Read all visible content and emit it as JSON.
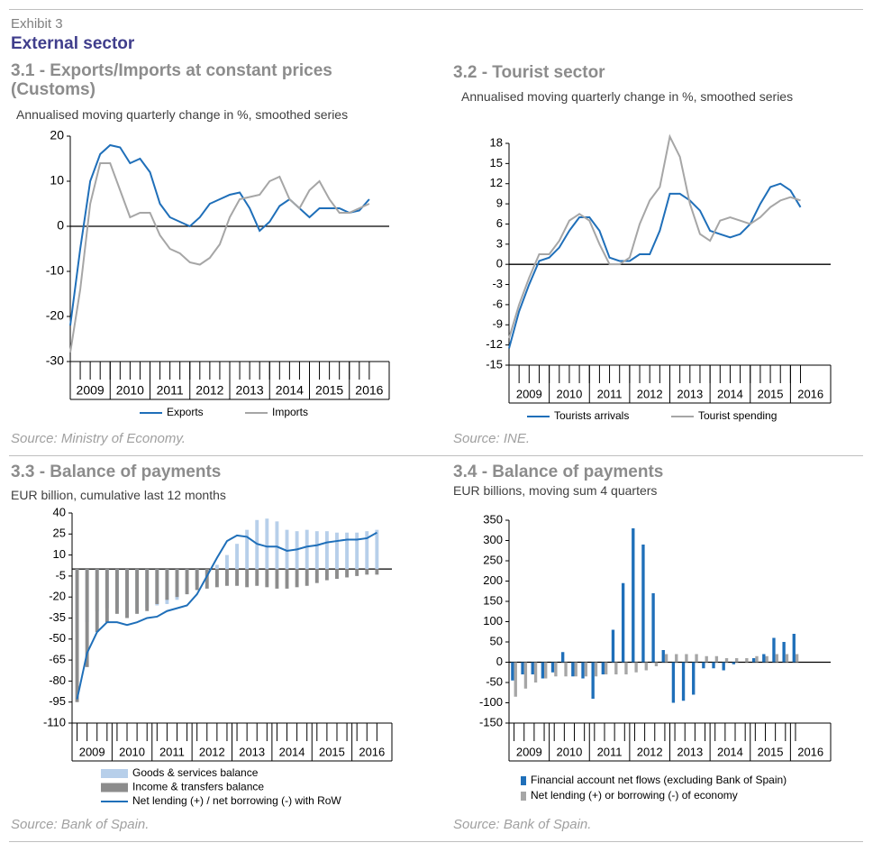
{
  "header": {
    "exhibit": "Exhibit 3",
    "title": "External sector"
  },
  "chart_data": [
    {
      "type": "line",
      "title": "3.1 - Exports/Imports at constant prices (Customs)",
      "subtitle": "Annualised moving quarterly change in %, smoothed series",
      "source": "Source: Ministry of Economy.",
      "x": [
        2009,
        2009.25,
        2009.5,
        2009.75,
        2010,
        2010.25,
        2010.5,
        2010.75,
        2011,
        2011.25,
        2011.5,
        2011.75,
        2012,
        2012.25,
        2012.5,
        2012.75,
        2013,
        2013.25,
        2013.5,
        2013.75,
        2014,
        2014.25,
        2014.5,
        2014.75,
        2015,
        2015.25,
        2015.5,
        2015.75,
        2016,
        2016.25,
        2016.5
      ],
      "xlim": [
        2009,
        2017
      ],
      "xticks": [
        {
          "value": 2009.5,
          "label": "2009"
        },
        {
          "value": 2010.5,
          "label": "2010"
        },
        {
          "value": 2011.5,
          "label": "2011"
        },
        {
          "value": 2012.5,
          "label": "2012"
        },
        {
          "value": 2013.5,
          "label": "2013"
        },
        {
          "value": 2014.5,
          "label": "2014"
        },
        {
          "value": 2015.5,
          "label": "2015"
        },
        {
          "value": 2016.5,
          "label": "2016"
        }
      ],
      "ylim": [
        -30,
        20
      ],
      "yticks": [
        -30,
        -20,
        -10,
        0,
        10,
        20
      ],
      "series": [
        {
          "name": "Exports",
          "type": "line",
          "color": "#1f6fb9",
          "values": [
            -22,
            -5,
            10,
            16,
            18,
            17.5,
            14,
            15,
            12,
            5,
            2,
            1,
            0,
            2,
            5,
            6,
            7,
            7.5,
            4,
            -1,
            1,
            4.5,
            6,
            4,
            2,
            4,
            4,
            4,
            3,
            3.5,
            6
          ]
        },
        {
          "name": "Imports",
          "type": "line",
          "color": "#a6a6a6",
          "values": [
            -28,
            -14,
            5,
            14,
            14,
            8,
            2,
            3,
            3,
            -2,
            -5,
            -6,
            -8,
            -8.5,
            -7,
            -4,
            2,
            6,
            6.5,
            7,
            10,
            11,
            6,
            4,
            8,
            10,
            6,
            3,
            3,
            4,
            5
          ]
        }
      ]
    },
    {
      "type": "line",
      "title": "3.2 - Tourist sector",
      "subtitle": "Annualised moving quarterly change in %, smoothed series",
      "source": "Source: INE.",
      "x": [
        2009,
        2009.25,
        2009.5,
        2009.75,
        2010,
        2010.25,
        2010.5,
        2010.75,
        2011,
        2011.25,
        2011.5,
        2011.75,
        2012,
        2012.25,
        2012.5,
        2012.75,
        2013,
        2013.25,
        2013.5,
        2013.75,
        2014,
        2014.25,
        2014.5,
        2014.75,
        2015,
        2015.25,
        2015.5,
        2015.75,
        2016,
        2016.25
      ],
      "xlim": [
        2009,
        2017
      ],
      "xticks": [
        {
          "value": 2009.5,
          "label": "2009"
        },
        {
          "value": 2010.5,
          "label": "2010"
        },
        {
          "value": 2011.5,
          "label": "2011"
        },
        {
          "value": 2012.5,
          "label": "2012"
        },
        {
          "value": 2013.5,
          "label": "2013"
        },
        {
          "value": 2014.5,
          "label": "2014"
        },
        {
          "value": 2015.5,
          "label": "2015"
        },
        {
          "value": 2016.5,
          "label": "2016"
        }
      ],
      "ylim": [
        -15,
        18
      ],
      "yticks": [
        -15,
        -12,
        -9,
        -6,
        -3,
        0,
        3,
        6,
        9,
        12,
        15,
        18
      ],
      "series": [
        {
          "name": "Tourists arrivals",
          "type": "line",
          "color": "#1f6fb9",
          "values": [
            -12.5,
            -7,
            -3,
            0.5,
            1,
            2.5,
            5,
            7,
            7,
            5,
            1,
            0.5,
            0.5,
            1.5,
            1.5,
            5,
            10.5,
            10.5,
            9.5,
            8,
            5,
            4.5,
            4,
            4.5,
            6,
            9,
            11.5,
            12,
            11,
            8.5
          ]
        },
        {
          "name": "Tourist  spending",
          "type": "line",
          "color": "#a6a6a6",
          "values": [
            -11,
            -6,
            -2,
            1.5,
            1.5,
            3.5,
            6.5,
            7.5,
            6.5,
            3,
            0,
            0,
            1,
            6,
            9.5,
            11.5,
            19,
            16,
            9,
            4.5,
            3.5,
            6.5,
            7,
            6.5,
            6,
            7,
            8.5,
            9.5,
            10,
            9.5
          ]
        }
      ]
    },
    {
      "type": "bar",
      "barmode": "overlay",
      "title": "3.3 -  Balance of payments",
      "subtitle": "EUR billion, cumulative last 12 months",
      "source": "Source: Bank of Spain.",
      "x": [
        2009.125,
        2009.375,
        2009.625,
        2009.875,
        2010.125,
        2010.375,
        2010.625,
        2010.875,
        2011.125,
        2011.375,
        2011.625,
        2011.875,
        2012.125,
        2012.375,
        2012.625,
        2012.875,
        2013.125,
        2013.375,
        2013.625,
        2013.875,
        2014.125,
        2014.375,
        2014.625,
        2014.875,
        2015.125,
        2015.375,
        2015.625,
        2015.875,
        2016.125,
        2016.375,
        2016.625
      ],
      "xlim": [
        2009,
        2017
      ],
      "xticks": [
        {
          "value": 2009.5,
          "label": "2009"
        },
        {
          "value": 2010.5,
          "label": "2010"
        },
        {
          "value": 2011.5,
          "label": "2011"
        },
        {
          "value": 2012.5,
          "label": "2012"
        },
        {
          "value": 2013.5,
          "label": "2013"
        },
        {
          "value": 2014.5,
          "label": "2014"
        },
        {
          "value": 2015.5,
          "label": "2015"
        },
        {
          "value": 2016.5,
          "label": "2016"
        }
      ],
      "ylim": [
        -110,
        40
      ],
      "yticks": [
        -110,
        -95,
        -80,
        -65,
        -50,
        -35,
        -20,
        -5,
        10,
        25,
        40
      ],
      "series": [
        {
          "name": "Goods & services balance",
          "type": "bar",
          "color": "#b7cfea",
          "values": [
            -45,
            -38,
            -30,
            -28,
            -28,
            -30,
            -30,
            -28,
            -26,
            -25,
            -22,
            -18,
            -12,
            -5,
            3,
            10,
            18,
            28,
            35,
            36,
            34,
            28,
            27,
            28,
            27,
            27,
            26,
            26,
            26,
            27,
            28
          ]
        },
        {
          "name": "Income & transfers balance",
          "type": "bar",
          "color": "#8c8c8c",
          "values": [
            -95,
            -70,
            -45,
            -38,
            -32,
            -35,
            -32,
            -30,
            -25,
            -22,
            -20,
            -18,
            -15,
            -14,
            -13,
            -12,
            -12,
            -13,
            -12,
            -13,
            -14,
            -14,
            -13,
            -12,
            -10,
            -8,
            -7,
            -6,
            -5,
            -4,
            -4
          ]
        },
        {
          "name": "Net lending (+) / net borrowing (-) with RoW",
          "type": "line",
          "color": "#1f6fb9",
          "values": [
            -93,
            -60,
            -45,
            -38,
            -38,
            -40,
            -38,
            -35,
            -34,
            -30,
            -28,
            -26,
            -18,
            -5,
            8,
            20,
            24,
            23,
            18,
            16,
            16,
            13,
            14,
            16,
            17,
            19,
            20,
            21,
            21,
            22,
            26
          ]
        }
      ]
    },
    {
      "type": "bar",
      "barmode": "group",
      "title": "3.4 - Balance of payments",
      "subtitle": "EUR billions, moving sum 4 quarters",
      "source": "Source: Bank of Spain.",
      "x": [
        2009.125,
        2009.375,
        2009.625,
        2009.875,
        2010.125,
        2010.375,
        2010.625,
        2010.875,
        2011.125,
        2011.375,
        2011.625,
        2011.875,
        2012.125,
        2012.375,
        2012.625,
        2012.875,
        2013.125,
        2013.375,
        2013.625,
        2013.875,
        2014.125,
        2014.375,
        2014.625,
        2014.875,
        2015.125,
        2015.375,
        2015.625,
        2015.875,
        2016.125
      ],
      "xlim": [
        2009,
        2017
      ],
      "xticks": [
        {
          "value": 2009.5,
          "label": "2009"
        },
        {
          "value": 2010.5,
          "label": "2010"
        },
        {
          "value": 2011.5,
          "label": "2011"
        },
        {
          "value": 2012.5,
          "label": "2012"
        },
        {
          "value": 2013.5,
          "label": "2013"
        },
        {
          "value": 2014.5,
          "label": "2014"
        },
        {
          "value": 2015.5,
          "label": "2015"
        },
        {
          "value": 2016.5,
          "label": "2016"
        }
      ],
      "ylim": [
        -150,
        350
      ],
      "yticks": [
        -150,
        -100,
        -50,
        0,
        50,
        100,
        150,
        200,
        250,
        300,
        350
      ],
      "series": [
        {
          "name": "Financial account net flows (excluding Bank of Spain)",
          "type": "bar",
          "color": "#1f6fb9",
          "values": [
            -45,
            -30,
            -30,
            -40,
            -25,
            25,
            -35,
            -40,
            -90,
            -30,
            80,
            195,
            330,
            290,
            170,
            30,
            -100,
            -95,
            -80,
            -15,
            -15,
            -20,
            -5,
            0,
            10,
            20,
            60,
            50,
            70
          ]
        },
        {
          "name": "Net lending (+) or borrowing (-) of economy",
          "type": "bar",
          "color": "#a6a6a6",
          "values": [
            -85,
            -65,
            -50,
            -40,
            -35,
            -35,
            -35,
            -35,
            -35,
            -30,
            -30,
            -30,
            -25,
            -20,
            -10,
            20,
            20,
            20,
            20,
            15,
            15,
            10,
            10,
            10,
            15,
            15,
            20,
            20,
            20
          ]
        }
      ]
    }
  ]
}
